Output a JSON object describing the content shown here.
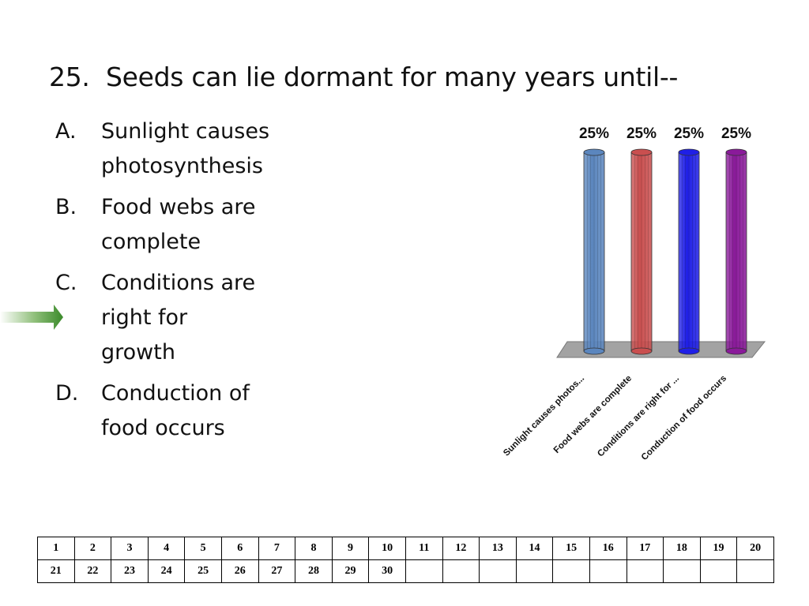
{
  "question": {
    "number": "25.",
    "text": "Seeds can lie dormant for many years until--"
  },
  "answers": [
    {
      "letter": "A.",
      "lines": [
        "Sunlight causes",
        "photosynthesis"
      ]
    },
    {
      "letter": "B.",
      "lines": [
        "Food webs are",
        "complete"
      ]
    },
    {
      "letter": "C.",
      "lines": [
        "Conditions are",
        "right for",
        "growth"
      ],
      "correct": true
    },
    {
      "letter": "D.",
      "lines": [
        "Conduction of",
        "food occurs"
      ]
    }
  ],
  "chart_data": {
    "type": "bar",
    "categories": [
      "Sunlight causes photos...",
      "Food webs are complete",
      "Conditions are right for ...",
      "Conduction of food occurs"
    ],
    "values": [
      25,
      25,
      25,
      25
    ],
    "data_labels": [
      "25%",
      "25%",
      "25%",
      "25%"
    ],
    "colors": [
      "#5b86be",
      "#c94f4f",
      "#1f1fe6",
      "#8a1a9a"
    ],
    "ylim": [
      0,
      25
    ],
    "title": "",
    "xlabel": "",
    "ylabel": ""
  },
  "number_grid": {
    "rows": [
      [
        "1",
        "2",
        "3",
        "4",
        "5",
        "6",
        "7",
        "8",
        "9",
        "10",
        "11",
        "12",
        "13",
        "14",
        "15",
        "16",
        "17",
        "18",
        "19",
        "20"
      ],
      [
        "21",
        "22",
        "23",
        "24",
        "25",
        "26",
        "27",
        "28",
        "29",
        "30",
        "",
        "",
        "",
        "",
        "",
        "",
        "",
        "",
        "",
        ""
      ]
    ]
  },
  "arrow_color": "#3a8a2a"
}
